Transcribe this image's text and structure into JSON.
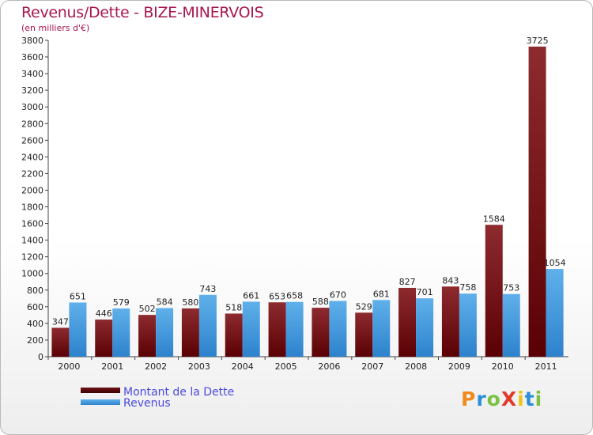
{
  "title": "Revenus/Dette - BIZE-MINERVOIS",
  "subtitle": "(en milliers d'€)",
  "colors": {
    "title": "#a8164f",
    "debt_top": "#8d2b2f",
    "debt_bottom": "#5a0004",
    "revenue_top": "#5fb0ea",
    "revenue_bottom": "#2d82cc",
    "legend_text": "#4a4adf"
  },
  "legend": [
    {
      "label": "Montant de la Dette",
      "series": "debt"
    },
    {
      "label": "Revenus",
      "series": "revenue"
    }
  ],
  "logo": {
    "text": "ProXiti"
  },
  "chart_data": {
    "type": "bar",
    "title": "Revenus/Dette - BIZE-MINERVOIS",
    "ylabel": "(en milliers d'€)",
    "xlabel": "",
    "ylim": [
      0,
      3800
    ],
    "yticks": [
      0,
      200,
      400,
      600,
      800,
      1000,
      1200,
      1400,
      1600,
      1800,
      2000,
      2200,
      2400,
      2600,
      2800,
      3000,
      3200,
      3400,
      3600,
      3800
    ],
    "grid": false,
    "categories": [
      "2000",
      "2001",
      "2002",
      "2003",
      "2004",
      "2005",
      "2006",
      "2007",
      "2008",
      "2009",
      "2010",
      "2011"
    ],
    "series": [
      {
        "name": "Montant de la Dette",
        "key": "debt",
        "values": [
          347,
          446,
          502,
          580,
          518,
          653,
          588,
          529,
          827,
          843,
          1584,
          3725
        ]
      },
      {
        "name": "Revenus",
        "key": "revenue",
        "values": [
          651,
          579,
          584,
          743,
          661,
          658,
          670,
          681,
          701,
          758,
          753,
          1054
        ]
      }
    ]
  }
}
